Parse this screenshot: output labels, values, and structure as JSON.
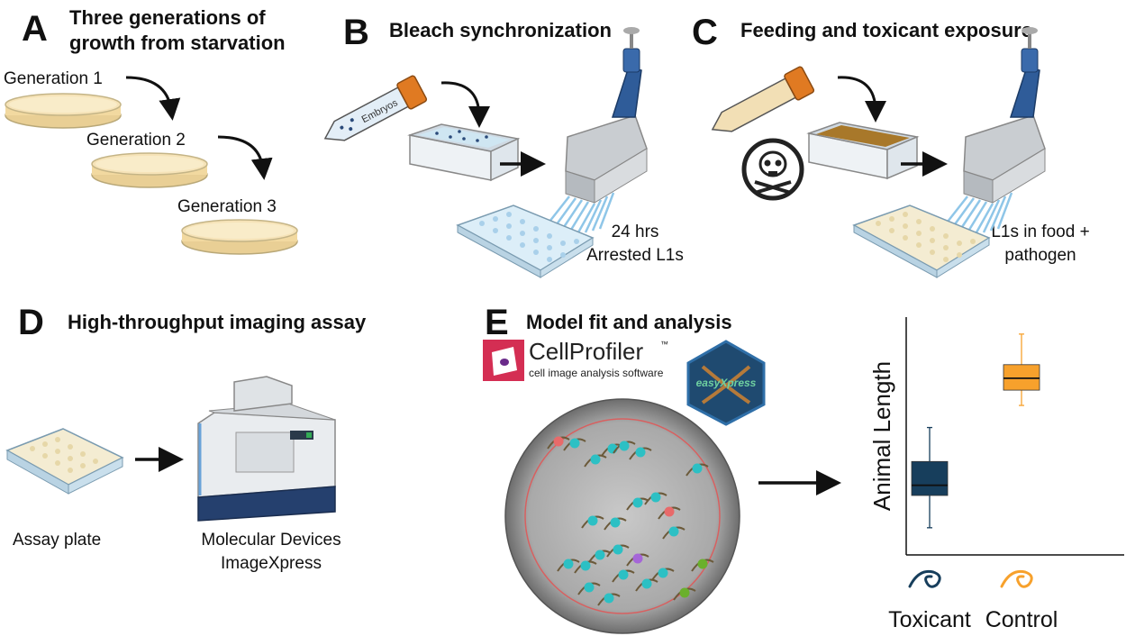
{
  "panels": {
    "A": {
      "letter": "A",
      "title_line1": "Three generations of",
      "title_line2": "growth from starvation",
      "gen1": "Generation 1",
      "gen2": "Generation 2",
      "gen3": "Generation 3"
    },
    "B": {
      "letter": "B",
      "title": "Bleach synchronization",
      "tube_label": "Embryos",
      "note_line1": "24 hrs",
      "note_line2": "Arrested L1s"
    },
    "C": {
      "letter": "C",
      "title": "Feeding and toxicant exposure",
      "note_line1": "L1s in food +",
      "note_line2": "pathogen"
    },
    "D": {
      "letter": "D",
      "title": "High-throughput imaging assay",
      "plate_label": "Assay plate",
      "device_line1": "Molecular Devices",
      "device_line2": "ImageXpress"
    },
    "E": {
      "letter": "E",
      "title": "Model fit and analysis",
      "logo_name": "CellProfiler",
      "logo_tm": "™",
      "logo_tagline": "cell image analysis software",
      "hex_logo_text": "easyXpress"
    }
  },
  "chart_data": {
    "type": "box",
    "title": "",
    "xlabel": "",
    "ylabel": "Animal Length",
    "categories": [
      "Toxicant",
      "Control"
    ],
    "series": [
      {
        "name": "Toxicant",
        "color": "#173e5c",
        "whisker_low": 1.6,
        "q1": 3.5,
        "median": 4.1,
        "q3": 5.5,
        "whisker_high": 7.5
      },
      {
        "name": "Control",
        "color": "#f7a12c",
        "whisker_low": 8.8,
        "q1": 9.7,
        "median": 10.4,
        "q3": 11.2,
        "whisker_high": 13.0
      }
    ],
    "ylim": [
      0,
      14
    ],
    "y_ticks_shown": false,
    "grid": false,
    "legend": "none"
  },
  "icons": {
    "curve_arrow": "curved-arrow-icon",
    "straight_arrow": "right-arrow-icon",
    "skull": "skull-crossbones-icon",
    "worm": "worm-icon"
  },
  "colors": {
    "agar": "#f2d9a0",
    "dish_rim": "#d9c78c",
    "pipette_blue": "#2f5c99",
    "plate_blue": "#cfe6f2",
    "toxicant": "#173e5c",
    "control": "#f7a12c",
    "cellprofiler_red": "#d42e53",
    "hex_blue": "#1f5f93"
  }
}
